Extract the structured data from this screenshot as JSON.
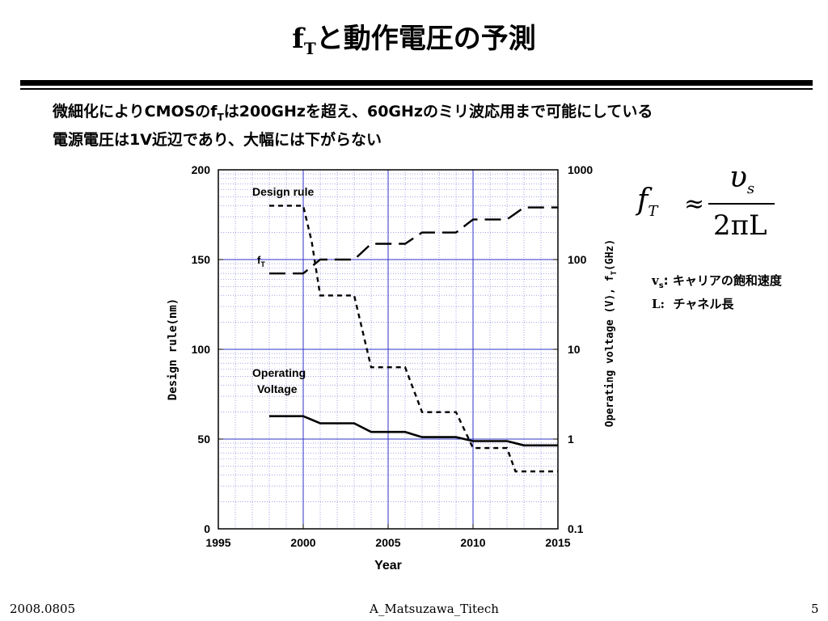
{
  "slide": {
    "title_main": "f",
    "title_sub": "T",
    "title_rest": "と動作電圧の予測",
    "subtitle_line1_a": "微細化によりCMOSのf",
    "subtitle_line1_sub": "T",
    "subtitle_line1_b": "は200GHzを超え、60GHzのミリ波応用まで可能にしている",
    "subtitle_line2": "電源電圧は1V近辺であり、大幅には下がらない"
  },
  "formula": {
    "lhs": "f",
    "lhs_sub": "T",
    "approx": "≈",
    "numerator": "υ",
    "numerator_sub": "s",
    "denominator": "2πL"
  },
  "notes": [
    {
      "sym": "v",
      "sub": "s",
      "text": ": キャリアの飽和速度"
    },
    {
      "sym": "L:",
      "sub": "",
      "text": "  チャネル長"
    }
  ],
  "footer": {
    "date": "2008.0805",
    "author": "A_Matsuzawa_Titech",
    "page": "5"
  },
  "chart_data": {
    "type": "line",
    "xlabel": "Year",
    "ylabel_left": "Design rule(nm)",
    "ylabel_right": "Operating voltage (V), f",
    "ylabel_right_sub": "T",
    "ylabel_right_unit": "(GHz)",
    "xlim": [
      1995,
      2015
    ],
    "ylim_left": [
      0,
      200
    ],
    "ylim_right": [
      0.1,
      1000
    ],
    "right_scale": "log",
    "x_ticks": [
      "1995",
      "2000",
      "2005",
      "2010",
      "2015"
    ],
    "y_left_ticks": [
      "0",
      "50",
      "100",
      "150",
      "200"
    ],
    "y_right_ticks": [
      "0.1",
      "1",
      "10",
      "100",
      "1000"
    ],
    "grid": true,
    "series": [
      {
        "name": "Design rule",
        "axis": "left",
        "style": "short-dash",
        "points": [
          [
            1998,
            180
          ],
          [
            2000,
            180
          ],
          [
            2000.5,
            160
          ],
          [
            2001,
            130
          ],
          [
            2003,
            130
          ],
          [
            2004,
            90
          ],
          [
            2006,
            90
          ],
          [
            2007,
            65
          ],
          [
            2009,
            65
          ],
          [
            2010,
            45
          ],
          [
            2012,
            45
          ],
          [
            2012.5,
            32
          ],
          [
            2015,
            32
          ]
        ]
      },
      {
        "name": "f",
        "name_sub": "T",
        "axis": "right",
        "style": "long-dash",
        "points": [
          [
            1998,
            70
          ],
          [
            2000,
            70
          ],
          [
            2001,
            100
          ],
          [
            2003,
            100
          ],
          [
            2004,
            150
          ],
          [
            2006,
            150
          ],
          [
            2007,
            200
          ],
          [
            2009,
            200
          ],
          [
            2010,
            280
          ],
          [
            2012,
            280
          ],
          [
            2013,
            380
          ],
          [
            2015,
            380
          ]
        ]
      },
      {
        "name": "Operating Voltage",
        "name_line1": "Operating",
        "name_line2": "Voltage",
        "axis": "right",
        "style": "solid",
        "points": [
          [
            1998,
            1.8
          ],
          [
            2000,
            1.8
          ],
          [
            2001,
            1.5
          ],
          [
            2003,
            1.5
          ],
          [
            2004,
            1.2
          ],
          [
            2006,
            1.2
          ],
          [
            2007,
            1.05
          ],
          [
            2009,
            1.05
          ],
          [
            2010,
            0.95
          ],
          [
            2012,
            0.95
          ],
          [
            2013,
            0.85
          ],
          [
            2015,
            0.85
          ]
        ]
      }
    ]
  }
}
